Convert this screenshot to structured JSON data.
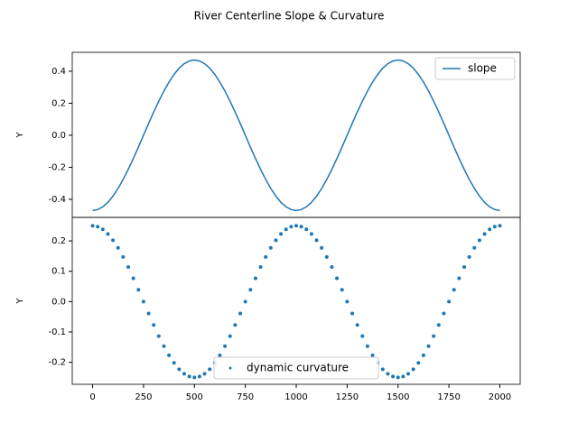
{
  "title": "River Centerline Slope & Curvature",
  "chart_data": [
    {
      "type": "line",
      "ylabel": "Y",
      "legend": "upper right",
      "xlim": [
        -100,
        2100
      ],
      "ylim": [
        -0.513,
        0.518
      ],
      "yticks": [
        -0.4,
        -0.2,
        {
          "value": 0,
          "label": "0.0"
        },
        0.2,
        0.4
      ],
      "x": [
        0,
        25,
        50,
        75,
        100,
        125,
        150,
        175,
        200,
        225,
        250,
        275,
        300,
        325,
        350,
        375,
        400,
        425,
        450,
        475,
        500,
        525,
        550,
        575,
        600,
        625,
        650,
        675,
        700,
        725,
        750,
        775,
        800,
        825,
        850,
        875,
        900,
        925,
        950,
        975,
        1000,
        1025,
        1050,
        1075,
        1100,
        1125,
        1150,
        1175,
        1200,
        1225,
        1250,
        1275,
        1300,
        1325,
        1350,
        1375,
        1400,
        1425,
        1450,
        1475,
        1500,
        1525,
        1550,
        1575,
        1600,
        1625,
        1650,
        1675,
        1700,
        1725,
        1750,
        1775,
        1800,
        1825,
        1850,
        1875,
        1900,
        1925,
        1950,
        1975,
        2000
      ],
      "series": [
        {
          "name": "slope",
          "color": "#1f77b4",
          "values": [
            -0.47,
            -0.464,
            -0.447,
            -0.419,
            -0.38,
            -0.332,
            -0.276,
            -0.213,
            -0.145,
            -0.074,
            0,
            0.074,
            0.145,
            0.213,
            0.276,
            0.332,
            0.38,
            0.419,
            0.447,
            0.464,
            0.47,
            0.464,
            0.447,
            0.419,
            0.38,
            0.332,
            0.276,
            0.213,
            0.145,
            0.074,
            0,
            -0.074,
            -0.145,
            -0.213,
            -0.276,
            -0.332,
            -0.38,
            -0.419,
            -0.447,
            -0.464,
            -0.47,
            -0.464,
            -0.447,
            -0.419,
            -0.38,
            -0.332,
            -0.276,
            -0.213,
            -0.145,
            -0.074,
            0,
            0.074,
            0.145,
            0.213,
            0.276,
            0.332,
            0.38,
            0.419,
            0.447,
            0.464,
            0.47,
            0.464,
            0.447,
            0.419,
            0.38,
            0.332,
            0.276,
            0.213,
            0.145,
            0.074,
            0,
            -0.074,
            -0.145,
            -0.213,
            -0.276,
            -0.332,
            -0.38,
            -0.419,
            -0.447,
            -0.464,
            -0.47
          ]
        }
      ]
    },
    {
      "type": "scatter",
      "ylabel": "Y",
      "legend": "lower center",
      "xlim": [
        -100,
        2100
      ],
      "ylim": [
        -0.2725,
        0.2775
      ],
      "xticks": [
        0,
        250,
        500,
        750,
        1000,
        1250,
        1500,
        1750,
        2000
      ],
      "yticks": [
        -0.2,
        -0.1,
        {
          "value": 0,
          "label": "0.0"
        },
        0.1,
        0.2
      ],
      "x": [
        0,
        25,
        50,
        75,
        100,
        125,
        150,
        175,
        200,
        225,
        250,
        275,
        300,
        325,
        350,
        375,
        400,
        425,
        450,
        475,
        500,
        525,
        550,
        575,
        600,
        625,
        650,
        675,
        700,
        725,
        750,
        775,
        800,
        825,
        850,
        875,
        900,
        925,
        950,
        975,
        1000,
        1025,
        1050,
        1075,
        1100,
        1125,
        1150,
        1175,
        1200,
        1225,
        1250,
        1275,
        1300,
        1325,
        1350,
        1375,
        1400,
        1425,
        1450,
        1475,
        1500,
        1525,
        1550,
        1575,
        1600,
        1625,
        1650,
        1675,
        1700,
        1725,
        1750,
        1775,
        1800,
        1825,
        1850,
        1875,
        1900,
        1925,
        1950,
        1975,
        2000
      ],
      "series": [
        {
          "name": "dynamic curvature",
          "color": "#1f77b4",
          "values": [
            0.25,
            0.247,
            0.238,
            0.223,
            0.202,
            0.177,
            0.147,
            0.114,
            0.077,
            0.039,
            0,
            -0.039,
            -0.077,
            -0.114,
            -0.147,
            -0.177,
            -0.202,
            -0.223,
            -0.238,
            -0.247,
            -0.25,
            -0.247,
            -0.238,
            -0.223,
            -0.202,
            -0.177,
            -0.147,
            -0.114,
            -0.077,
            -0.039,
            0,
            0.039,
            0.077,
            0.114,
            0.147,
            0.177,
            0.202,
            0.223,
            0.238,
            0.247,
            0.25,
            0.247,
            0.238,
            0.223,
            0.202,
            0.177,
            0.147,
            0.114,
            0.077,
            0.039,
            0,
            -0.039,
            -0.077,
            -0.114,
            -0.147,
            -0.177,
            -0.202,
            -0.223,
            -0.238,
            -0.247,
            -0.25,
            -0.247,
            -0.238,
            -0.223,
            -0.202,
            -0.177,
            -0.147,
            -0.114,
            -0.077,
            -0.039,
            0,
            0.039,
            0.077,
            0.114,
            0.147,
            0.177,
            0.202,
            0.223,
            0.238,
            0.247,
            0.25
          ]
        }
      ]
    }
  ]
}
